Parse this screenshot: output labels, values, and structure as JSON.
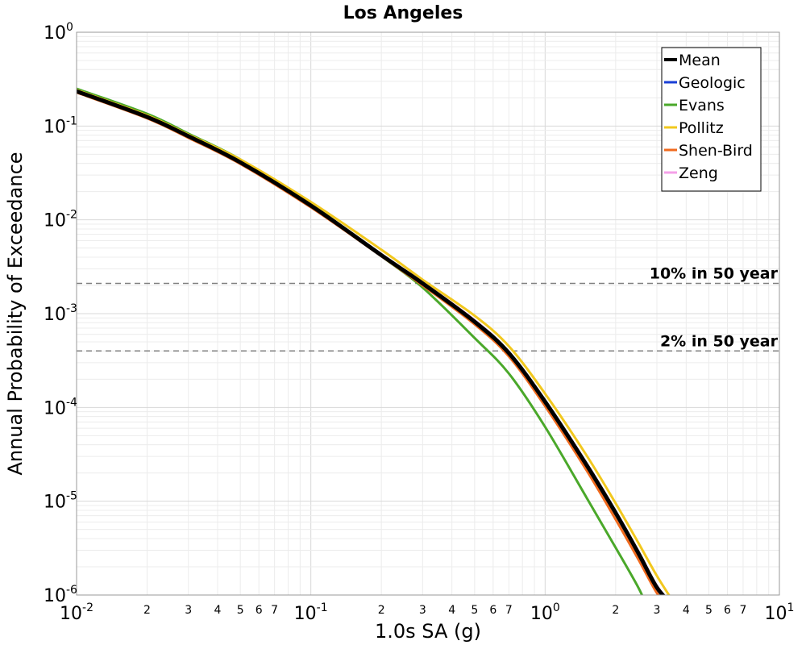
{
  "chart_data": {
    "type": "line",
    "title": "Los Angeles",
    "xlabel": "1.0s SA (g)",
    "ylabel": "Annual Probability of Exceedance",
    "x_scale": "log",
    "y_scale": "log",
    "xlim": [
      0.01,
      10
    ],
    "ylim": [
      1e-06,
      1
    ],
    "x_major_ticks": [
      {
        "value": 0.01,
        "base": "10",
        "exp": "-2"
      },
      {
        "value": 0.1,
        "base": "10",
        "exp": "-1"
      },
      {
        "value": 1,
        "base": "10",
        "exp": "0"
      },
      {
        "value": 10,
        "base": "10",
        "exp": "1"
      }
    ],
    "x_minor_tick_labels": [
      "2",
      "3",
      "4",
      "5",
      "6",
      "7"
    ],
    "y_major_ticks": [
      {
        "value": 1,
        "base": "10",
        "exp": "0"
      },
      {
        "value": 0.1,
        "base": "10",
        "exp": "-1"
      },
      {
        "value": 0.01,
        "base": "10",
        "exp": "-2"
      },
      {
        "value": 0.001,
        "base": "10",
        "exp": "-3"
      },
      {
        "value": 0.0001,
        "base": "10",
        "exp": "-4"
      },
      {
        "value": 1e-05,
        "base": "10",
        "exp": "-5"
      },
      {
        "value": 1e-06,
        "base": "10",
        "exp": "-6"
      }
    ],
    "grid": true,
    "legend_position": "top-right",
    "reference_lines": [
      {
        "label": "10% in 50 year",
        "y": 0.0021,
        "color": "#808080"
      },
      {
        "label": "2% in 50 year",
        "y": 0.0004,
        "color": "#808080"
      }
    ],
    "series": [
      {
        "name": "Geologic",
        "color": "#1a3fd6",
        "width": 3,
        "x": [
          0.01,
          0.02,
          0.03,
          0.05,
          0.1,
          0.2,
          0.3,
          0.5,
          0.7,
          1.0,
          1.5,
          2.0,
          2.5,
          3.0,
          3.5
        ],
        "y": [
          0.235,
          0.125,
          0.078,
          0.041,
          0.0142,
          0.0042,
          0.0021,
          0.00082,
          0.00038,
          0.000115,
          2.45e-05,
          7.5e-06,
          2.8e-06,
          1.2e-06,
          7.8e-07
        ]
      },
      {
        "name": "Evans",
        "color": "#4aa82a",
        "width": 3,
        "x": [
          0.01,
          0.02,
          0.03,
          0.05,
          0.1,
          0.2,
          0.3,
          0.5,
          0.7,
          1.0,
          1.5,
          2.0,
          2.5,
          2.7
        ],
        "y": [
          0.25,
          0.135,
          0.083,
          0.044,
          0.0148,
          0.0041,
          0.0019,
          0.00055,
          0.00023,
          6.2e-05,
          1.1e-05,
          3.2e-06,
          1.2e-06,
          7.8e-07
        ]
      },
      {
        "name": "Pollitz",
        "color": "#f2c81e",
        "width": 3,
        "x": [
          0.01,
          0.02,
          0.03,
          0.05,
          0.1,
          0.2,
          0.3,
          0.5,
          0.7,
          1.0,
          1.5,
          2.0,
          2.5,
          3.0,
          3.6
        ],
        "y": [
          0.242,
          0.13,
          0.081,
          0.044,
          0.0155,
          0.0048,
          0.0023,
          0.00095,
          0.00045,
          0.00014,
          3.1e-05,
          9.5e-06,
          3.6e-06,
          1.6e-06,
          7.8e-07
        ]
      },
      {
        "name": "Shen-Bird",
        "color": "#f06a1e",
        "width": 3,
        "x": [
          0.01,
          0.02,
          0.03,
          0.05,
          0.1,
          0.2,
          0.3,
          0.5,
          0.7,
          1.0,
          1.5,
          2.0,
          2.5,
          3.0,
          3.35
        ],
        "y": [
          0.228,
          0.121,
          0.075,
          0.0395,
          0.0136,
          0.0041,
          0.002,
          0.00077,
          0.00035,
          0.000103,
          2.15e-05,
          6.4e-06,
          2.4e-06,
          1.05e-06,
          7.8e-07
        ]
      },
      {
        "name": "Zeng",
        "color": "#f5a0e8",
        "width": 3,
        "x": [
          0.01,
          0.02,
          0.03,
          0.05,
          0.1,
          0.2,
          0.3,
          0.5,
          0.7,
          1.0,
          1.5,
          2.0,
          2.5,
          3.0,
          3.5
        ],
        "y": [
          0.236,
          0.126,
          0.078,
          0.041,
          0.0143,
          0.0043,
          0.00215,
          0.00085,
          0.00039,
          0.000118,
          2.55e-05,
          7.8e-06,
          2.9e-06,
          1.25e-06,
          7.8e-07
        ]
      },
      {
        "name": "Mean",
        "color": "#000000",
        "width": 5,
        "x": [
          0.01,
          0.02,
          0.03,
          0.05,
          0.1,
          0.2,
          0.3,
          0.5,
          0.7,
          1.0,
          1.5,
          2.0,
          2.5,
          3.0,
          3.5
        ],
        "y": [
          0.235,
          0.125,
          0.078,
          0.041,
          0.0142,
          0.0042,
          0.0021,
          0.00082,
          0.00038,
          0.000115,
          2.45e-05,
          7.5e-06,
          2.8e-06,
          1.2e-06,
          7.8e-07
        ]
      }
    ],
    "legend_order": [
      "Mean",
      "Geologic",
      "Evans",
      "Pollitz",
      "Shen-Bird",
      "Zeng"
    ]
  }
}
